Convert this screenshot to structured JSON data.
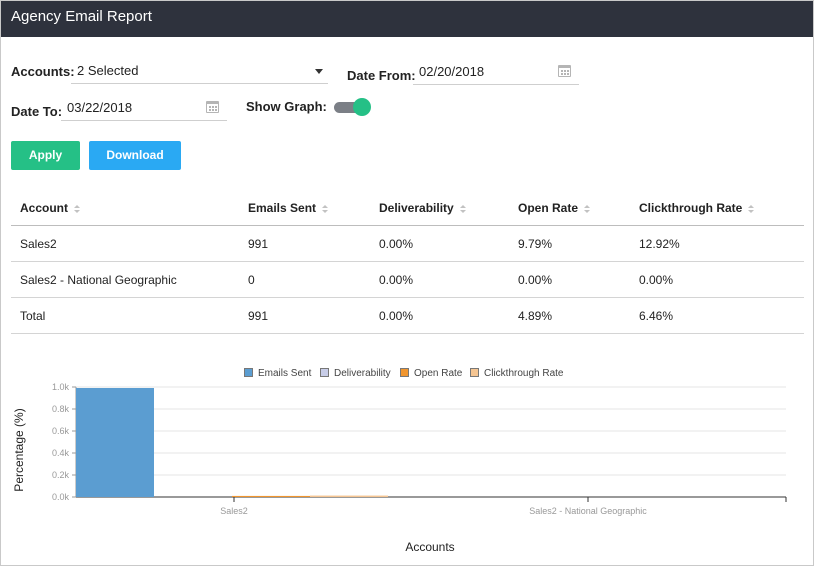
{
  "window": {
    "title": "Agency Email Report"
  },
  "filters": {
    "accounts_label": "Accounts:",
    "accounts_value": "2 Selected",
    "date_from_label": "Date From:",
    "date_from_value": "02/20/2018",
    "date_to_label": "Date To:",
    "date_to_value": "03/22/2018",
    "show_graph_label": "Show Graph:",
    "show_graph_on": true,
    "toggle_color": "#25c086"
  },
  "buttons": {
    "apply_label": "Apply",
    "apply_color": "#25c086",
    "download_label": "Download",
    "download_color": "#2aa9f3"
  },
  "table": {
    "columns": [
      "Account",
      "Emails Sent",
      "Deliverability",
      "Open Rate",
      "Clickthrough Rate"
    ],
    "rows": [
      [
        "Sales2",
        "991",
        "0.00%",
        "9.79%",
        "12.92%"
      ],
      [
        "Sales2 - National Geographic",
        "0",
        "0.00%",
        "0.00%",
        "0.00%"
      ],
      [
        "Total",
        "991",
        "0.00%",
        "4.89%",
        "6.46%"
      ]
    ]
  },
  "chart_data": {
    "type": "bar",
    "categories": [
      "Sales2",
      "Sales2 - National Geographic"
    ],
    "series": [
      {
        "name": "Emails Sent",
        "color": "#5b9dd1",
        "values": [
          991,
          0
        ]
      },
      {
        "name": "Deliverability",
        "color": "#c8cde8",
        "values": [
          0,
          0
        ]
      },
      {
        "name": "Open Rate",
        "color": "#f0952e",
        "values": [
          9.79,
          0
        ]
      },
      {
        "name": "Clickthrough Rate",
        "color": "#f5c592",
        "values": [
          12.92,
          0
        ]
      }
    ],
    "xlabel": "Accounts",
    "ylabel": "Percentage (%)",
    "ylim": [
      0,
      1000
    ],
    "yticks": [
      "0.0k",
      "0.2k",
      "0.4k",
      "0.6k",
      "0.8k",
      "1.0k"
    ],
    "grid": true,
    "legend_position": "top"
  }
}
